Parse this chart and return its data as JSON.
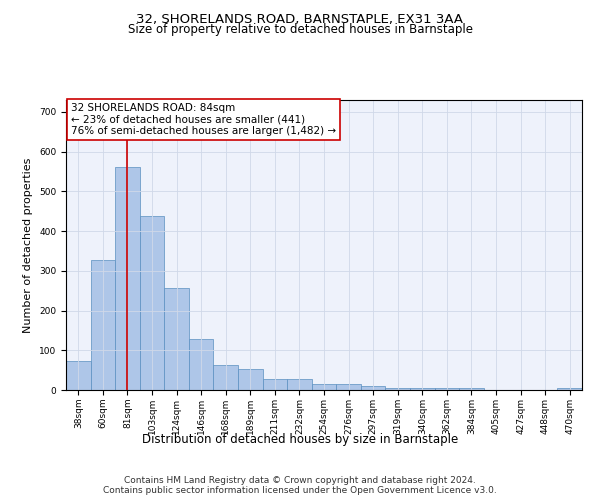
{
  "title": "32, SHORELANDS ROAD, BARNSTAPLE, EX31 3AA",
  "subtitle": "Size of property relative to detached houses in Barnstaple",
  "xlabel": "Distribution of detached houses by size in Barnstaple",
  "ylabel": "Number of detached properties",
  "categories": [
    "38sqm",
    "60sqm",
    "81sqm",
    "103sqm",
    "124sqm",
    "146sqm",
    "168sqm",
    "189sqm",
    "211sqm",
    "232sqm",
    "254sqm",
    "276sqm",
    "297sqm",
    "319sqm",
    "340sqm",
    "362sqm",
    "384sqm",
    "405sqm",
    "427sqm",
    "448sqm",
    "470sqm"
  ],
  "values": [
    72,
    328,
    562,
    438,
    258,
    128,
    63,
    53,
    28,
    28,
    16,
    16,
    11,
    5,
    5,
    5,
    5,
    0,
    0,
    0,
    5
  ],
  "bar_color": "#aec6e8",
  "bar_edge_color": "#5a8fc0",
  "vline_x": 2,
  "vline_color": "#cc0000",
  "annotation_text": "32 SHORELANDS ROAD: 84sqm\n← 23% of detached houses are smaller (441)\n76% of semi-detached houses are larger (1,482) →",
  "annotation_box_color": "#ffffff",
  "annotation_box_edge_color": "#cc0000",
  "ylim": [
    0,
    730
  ],
  "yticks": [
    0,
    100,
    200,
    300,
    400,
    500,
    600,
    700
  ],
  "footer": "Contains HM Land Registry data © Crown copyright and database right 2024.\nContains public sector information licensed under the Open Government Licence v3.0.",
  "grid_color": "#d0d8e8",
  "background_color": "#eef2fb",
  "title_fontsize": 9.5,
  "subtitle_fontsize": 8.5,
  "ylabel_fontsize": 8,
  "xlabel_fontsize": 8.5,
  "tick_fontsize": 6.5,
  "annotation_fontsize": 7.5,
  "footer_fontsize": 6.5
}
